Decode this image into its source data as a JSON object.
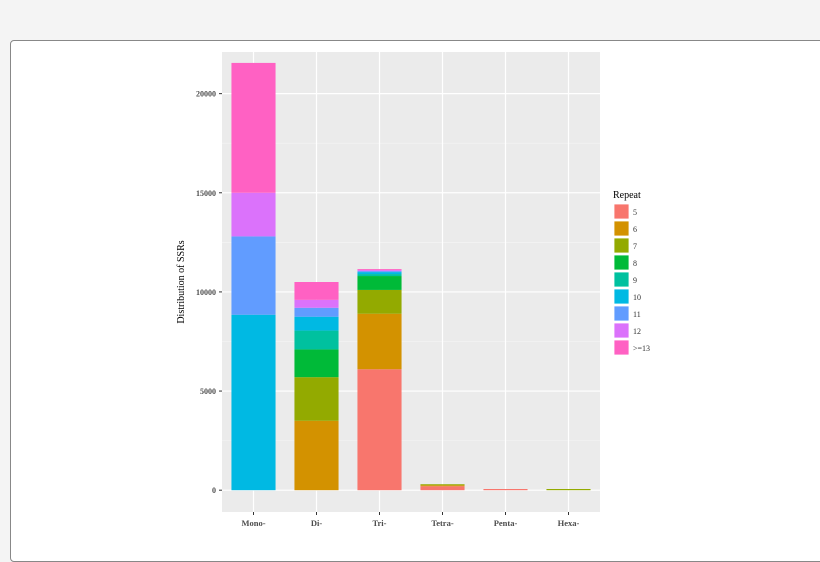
{
  "chart_data": {
    "type": "bar",
    "stacked": true,
    "title": "",
    "xlabel": "",
    "ylabel": "Distribution of SSRs",
    "ylim": [
      -1100,
      22100
    ],
    "yticks": [
      0,
      5000,
      10000,
      15000,
      20000
    ],
    "grid": true,
    "legend": {
      "title": "Repeat",
      "position": "right"
    },
    "categories": [
      "Mono-",
      "Di-",
      "Tri-",
      "Tetra-",
      "Penta-",
      "Hexa-"
    ],
    "series": [
      {
        "name": "5",
        "color": "#F8766D",
        "values": [
          0,
          0,
          6100,
          200,
          60,
          0
        ]
      },
      {
        "name": "6",
        "color": "#D39200",
        "values": [
          0,
          3500,
          2800,
          50,
          0,
          0
        ]
      },
      {
        "name": "7",
        "color": "#93AA00",
        "values": [
          0,
          2200,
          1200,
          50,
          0,
          60
        ]
      },
      {
        "name": "8",
        "color": "#00BA38",
        "values": [
          0,
          1400,
          700,
          0,
          0,
          0
        ]
      },
      {
        "name": "9",
        "color": "#00C19F",
        "values": [
          0,
          950,
          100,
          0,
          0,
          0
        ]
      },
      {
        "name": "10",
        "color": "#00B9E3",
        "values": [
          8850,
          700,
          100,
          0,
          0,
          0
        ]
      },
      {
        "name": "11",
        "color": "#619CFF",
        "values": [
          3950,
          450,
          50,
          0,
          0,
          0
        ]
      },
      {
        "name": "12",
        "color": "#DB72FB",
        "values": [
          2200,
          400,
          50,
          0,
          0,
          0
        ]
      },
      {
        "name": ">=13",
        "color": "#FF61C3",
        "values": [
          6550,
          900,
          50,
          0,
          0,
          0
        ]
      }
    ]
  }
}
